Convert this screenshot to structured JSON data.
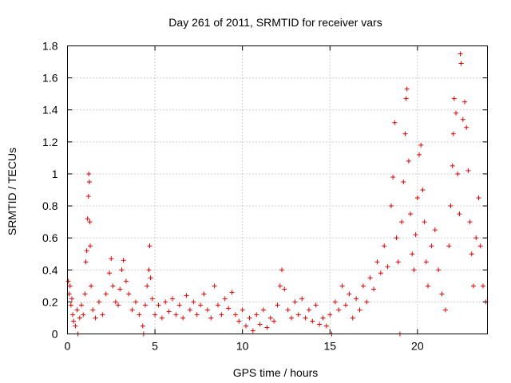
{
  "chart_data": {
    "type": "scatter",
    "title": "Day 261 of 2011, SRMTID for receiver vars",
    "xlabel": "GPS time / hours",
    "ylabel": "SRMTID / TECUs",
    "xlim": [
      0,
      24
    ],
    "ylim": [
      0,
      1.8
    ],
    "x_ticks": [
      0,
      5,
      10,
      15,
      20
    ],
    "x_tick_labels": [
      "0",
      "5",
      "10",
      "15",
      "20"
    ],
    "y_ticks": [
      0,
      0.2,
      0.4,
      0.6,
      0.8,
      1.0,
      1.2,
      1.4,
      1.6,
      1.8
    ],
    "y_tick_labels": [
      "0",
      "0.2",
      "0.4",
      "0.6",
      "0.8",
      "1",
      "1.2",
      "1.4",
      "1.6",
      "1.8"
    ],
    "grid": true,
    "marker": "+",
    "marker_color": "#e00000",
    "series": [
      {
        "name": "SRMTID",
        "points": [
          [
            0.05,
            0.33
          ],
          [
            0.1,
            0.25
          ],
          [
            0.15,
            0.3
          ],
          [
            0.2,
            0.18
          ],
          [
            0.25,
            0.22
          ],
          [
            0.3,
            0.12
          ],
          [
            0.35,
            0.08
          ],
          [
            0.45,
            0.05
          ],
          [
            0.55,
            0.15
          ],
          [
            0.6,
            0.0
          ],
          [
            0.7,
            0.1
          ],
          [
            0.8,
            0.18
          ],
          [
            0.9,
            0.12
          ],
          [
            1.0,
            0.25
          ],
          [
            1.05,
            0.45
          ],
          [
            1.1,
            0.52
          ],
          [
            1.15,
            0.72
          ],
          [
            1.2,
            0.86
          ],
          [
            1.22,
            1.0
          ],
          [
            1.25,
            0.95
          ],
          [
            1.28,
            0.7
          ],
          [
            1.3,
            0.55
          ],
          [
            1.35,
            0.3
          ],
          [
            1.45,
            0.15
          ],
          [
            1.6,
            0.1
          ],
          [
            1.8,
            0.2
          ],
          [
            2.0,
            0.12
          ],
          [
            2.2,
            0.25
          ],
          [
            2.4,
            0.38
          ],
          [
            2.5,
            0.47
          ],
          [
            2.6,
            0.3
          ],
          [
            2.75,
            0.2
          ],
          [
            2.9,
            0.18
          ],
          [
            3.0,
            0.28
          ],
          [
            3.1,
            0.4
          ],
          [
            3.2,
            0.46
          ],
          [
            3.35,
            0.33
          ],
          [
            3.5,
            0.25
          ],
          [
            3.7,
            0.15
          ],
          [
            3.9,
            0.2
          ],
          [
            4.1,
            0.12
          ],
          [
            4.3,
            0.05
          ],
          [
            4.35,
            0.0
          ],
          [
            4.45,
            0.18
          ],
          [
            4.55,
            0.3
          ],
          [
            4.65,
            0.4
          ],
          [
            4.7,
            0.55
          ],
          [
            4.75,
            0.35
          ],
          [
            4.85,
            0.22
          ],
          [
            5.0,
            0.12
          ],
          [
            5.2,
            0.18
          ],
          [
            5.4,
            0.1
          ],
          [
            5.6,
            0.2
          ],
          [
            5.8,
            0.14
          ],
          [
            6.0,
            0.22
          ],
          [
            6.2,
            0.12
          ],
          [
            6.4,
            0.18
          ],
          [
            6.6,
            0.1
          ],
          [
            6.8,
            0.24
          ],
          [
            7.0,
            0.15
          ],
          [
            7.2,
            0.2
          ],
          [
            7.4,
            0.12
          ],
          [
            7.6,
            0.18
          ],
          [
            7.8,
            0.25
          ],
          [
            8.0,
            0.15
          ],
          [
            8.2,
            0.1
          ],
          [
            8.4,
            0.3
          ],
          [
            8.6,
            0.18
          ],
          [
            8.8,
            0.12
          ],
          [
            9.0,
            0.22
          ],
          [
            9.2,
            0.16
          ],
          [
            9.4,
            0.26
          ],
          [
            9.6,
            0.12
          ],
          [
            9.8,
            0.08
          ],
          [
            10.0,
            0.15
          ],
          [
            10.2,
            0.05
          ],
          [
            10.4,
            0.1
          ],
          [
            10.6,
            0.02
          ],
          [
            10.8,
            0.12
          ],
          [
            11.0,
            0.06
          ],
          [
            11.2,
            0.15
          ],
          [
            11.4,
            0.04
          ],
          [
            11.6,
            0.1
          ],
          [
            11.8,
            0.08
          ],
          [
            12.0,
            0.18
          ],
          [
            12.15,
            0.3
          ],
          [
            12.25,
            0.4
          ],
          [
            12.4,
            0.28
          ],
          [
            12.6,
            0.15
          ],
          [
            12.8,
            0.1
          ],
          [
            13.0,
            0.2
          ],
          [
            13.2,
            0.12
          ],
          [
            13.4,
            0.22
          ],
          [
            13.6,
            0.1
          ],
          [
            13.8,
            0.15
          ],
          [
            14.0,
            0.08
          ],
          [
            14.2,
            0.18
          ],
          [
            14.4,
            0.06
          ],
          [
            14.6,
            0.1
          ],
          [
            14.8,
            0.05
          ],
          [
            15.0,
            0.12
          ],
          [
            15.1,
            0.0
          ],
          [
            15.3,
            0.2
          ],
          [
            15.5,
            0.15
          ],
          [
            15.7,
            0.3
          ],
          [
            15.9,
            0.18
          ],
          [
            16.1,
            0.25
          ],
          [
            16.3,
            0.1
          ],
          [
            16.5,
            0.22
          ],
          [
            16.7,
            0.15
          ],
          [
            16.9,
            0.3
          ],
          [
            17.1,
            0.2
          ],
          [
            17.3,
            0.35
          ],
          [
            17.5,
            0.28
          ],
          [
            17.7,
            0.45
          ],
          [
            17.9,
            0.38
          ],
          [
            18.1,
            0.55
          ],
          [
            18.3,
            0.42
          ],
          [
            18.5,
            0.8
          ],
          [
            18.6,
            0.98
          ],
          [
            18.7,
            1.32
          ],
          [
            18.8,
            0.6
          ],
          [
            18.9,
            0.45
          ],
          [
            19.0,
            0.0
          ],
          [
            19.1,
            0.7
          ],
          [
            19.2,
            0.95
          ],
          [
            19.3,
            1.25
          ],
          [
            19.35,
            1.47
          ],
          [
            19.4,
            1.53
          ],
          [
            19.5,
            1.08
          ],
          [
            19.6,
            0.75
          ],
          [
            19.7,
            0.5
          ],
          [
            19.8,
            0.4
          ],
          [
            19.9,
            0.62
          ],
          [
            20.0,
            0.85
          ],
          [
            20.1,
            1.12
          ],
          [
            20.2,
            1.18
          ],
          [
            20.3,
            0.9
          ],
          [
            20.4,
            0.7
          ],
          [
            20.5,
            0.45
          ],
          [
            20.6,
            0.3
          ],
          [
            20.8,
            0.55
          ],
          [
            21.0,
            0.65
          ],
          [
            21.2,
            0.4
          ],
          [
            21.4,
            0.25
          ],
          [
            21.6,
            0.15
          ],
          [
            21.8,
            0.55
          ],
          [
            21.9,
            0.8
          ],
          [
            22.0,
            1.05
          ],
          [
            22.05,
            1.25
          ],
          [
            22.1,
            1.47
          ],
          [
            22.2,
            1.38
          ],
          [
            22.3,
            1.0
          ],
          [
            22.4,
            0.75
          ],
          [
            22.45,
            1.75
          ],
          [
            22.5,
            1.69
          ],
          [
            22.6,
            1.34
          ],
          [
            22.7,
            1.45
          ],
          [
            22.8,
            1.29
          ],
          [
            22.9,
            1.02
          ],
          [
            23.0,
            0.7
          ],
          [
            23.1,
            0.5
          ],
          [
            23.2,
            0.3
          ],
          [
            23.35,
            0.6
          ],
          [
            23.5,
            0.85
          ],
          [
            23.6,
            0.55
          ],
          [
            23.75,
            0.3
          ],
          [
            23.9,
            0.2
          ]
        ]
      }
    ]
  }
}
